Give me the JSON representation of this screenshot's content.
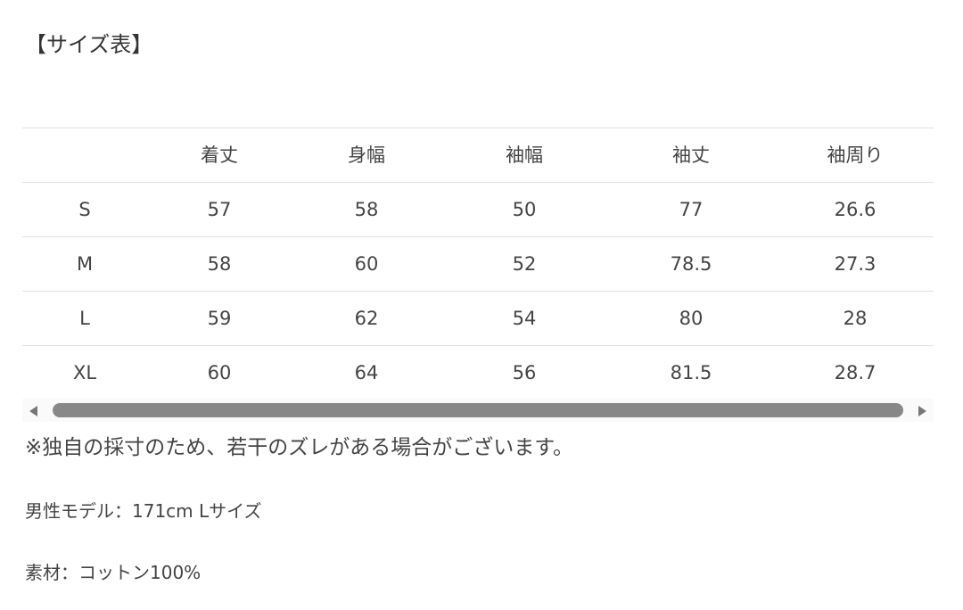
{
  "title": "【サイズ表】",
  "table": {
    "headers": [
      "",
      "着丈",
      "身幅",
      "袖幅",
      "袖丈",
      "袖周り"
    ],
    "rows": [
      [
        "S",
        "57",
        "58",
        "50",
        "77",
        "26.6"
      ],
      [
        "M",
        "58",
        "60",
        "52",
        "78.5",
        "27.3"
      ],
      [
        "L",
        "59",
        "62",
        "54",
        "80",
        "28"
      ],
      [
        "XL",
        "60",
        "64",
        "56",
        "81.5",
        "28.7"
      ]
    ]
  },
  "note": "※独自の採寸のため、若干のズレがある場合がございます。",
  "model": "男性モデル：171cm Lサイズ",
  "material": "素材：コットン100%"
}
